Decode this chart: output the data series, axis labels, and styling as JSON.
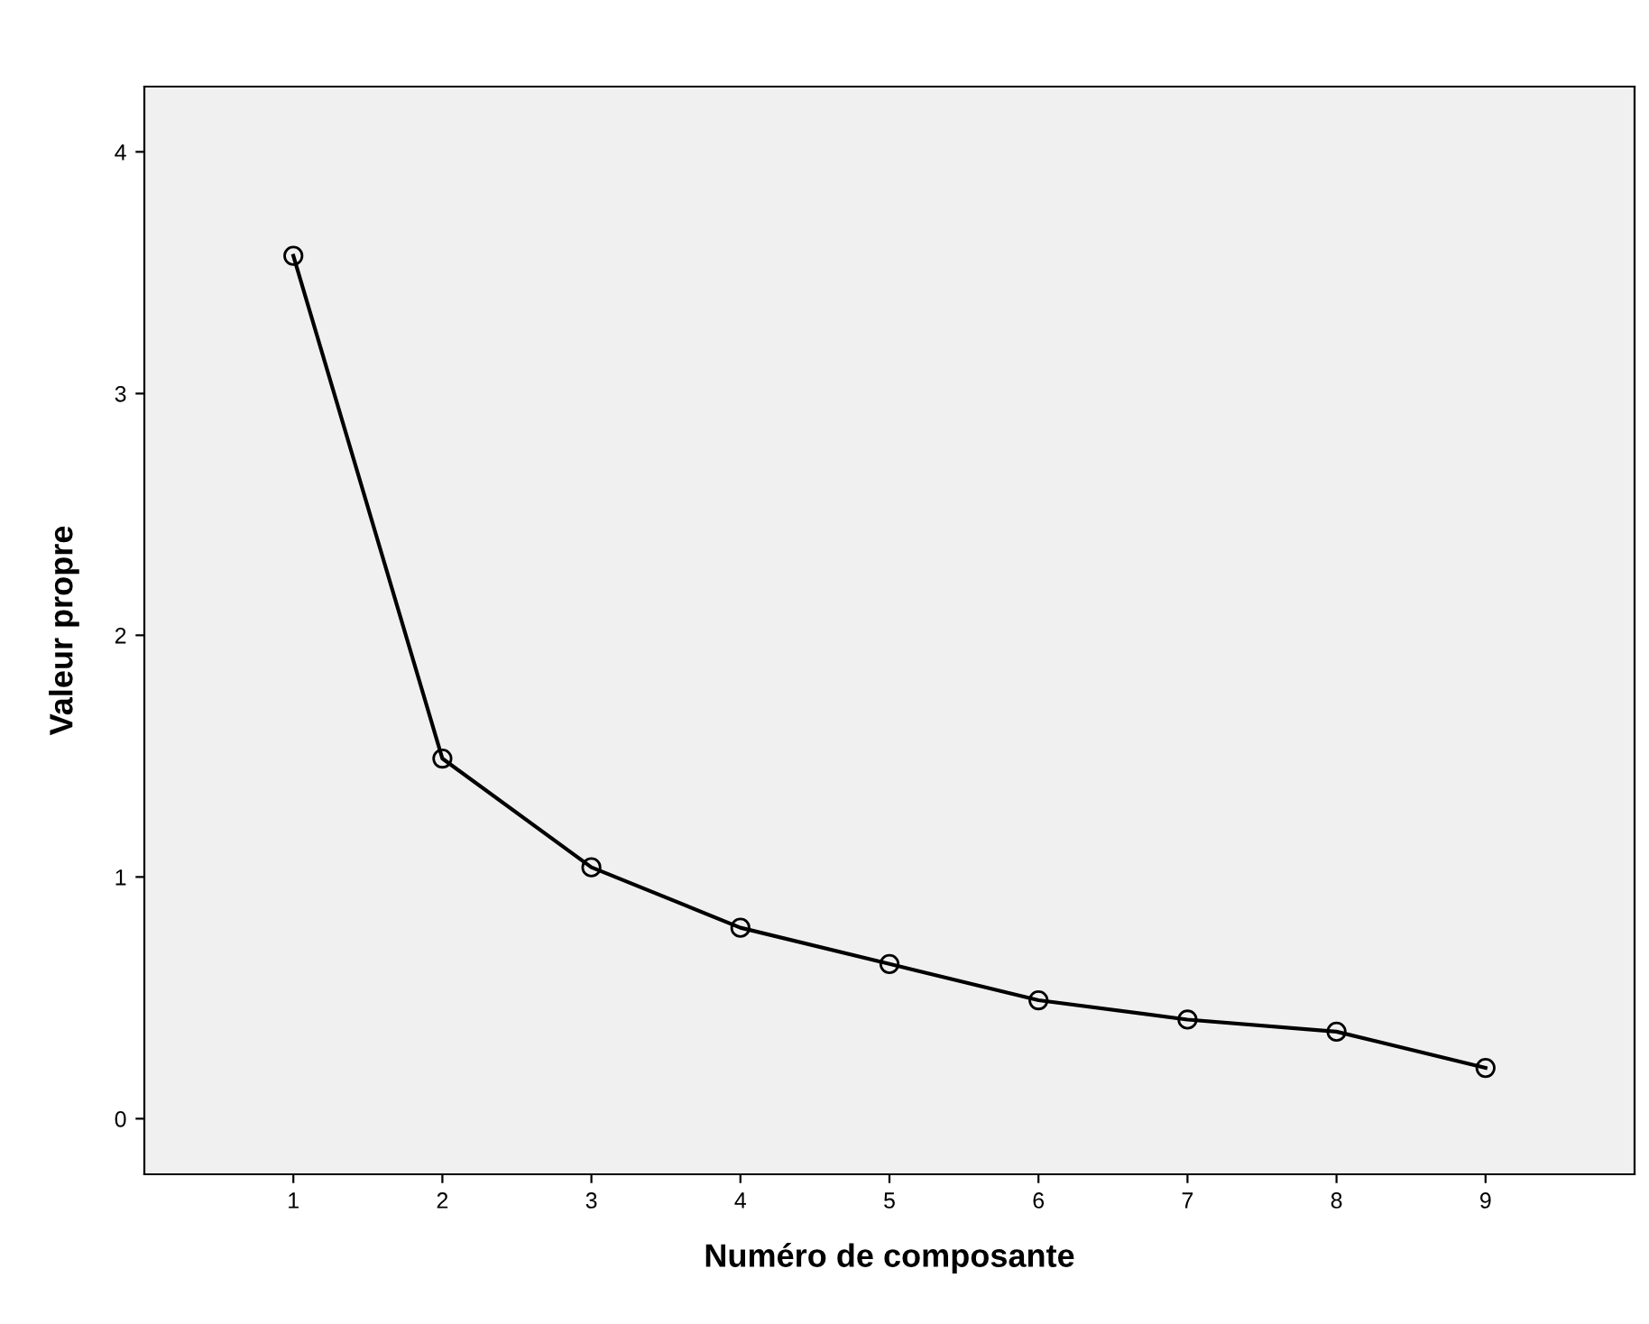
{
  "chart_data": {
    "type": "line",
    "xlabel": "Numéro de composante",
    "ylabel": "Valeur propre",
    "x": [
      1,
      2,
      3,
      4,
      5,
      6,
      7,
      8,
      9
    ],
    "series": [
      {
        "color": "#000000",
        "values": [
          3.57,
          1.49,
          1.04,
          0.79,
          0.64,
          0.49,
          0.41,
          0.36,
          0.21
        ]
      }
    ],
    "xlim": [
      0,
      10
    ],
    "xticks": [
      1,
      2,
      3,
      4,
      5,
      6,
      7,
      8,
      9
    ],
    "ylim": [
      -0.23,
      4.27
    ],
    "yticks": [
      0,
      1,
      2,
      3,
      4
    ],
    "marker": "circle",
    "line_style": "solid",
    "grid": false,
    "legend": false
  }
}
